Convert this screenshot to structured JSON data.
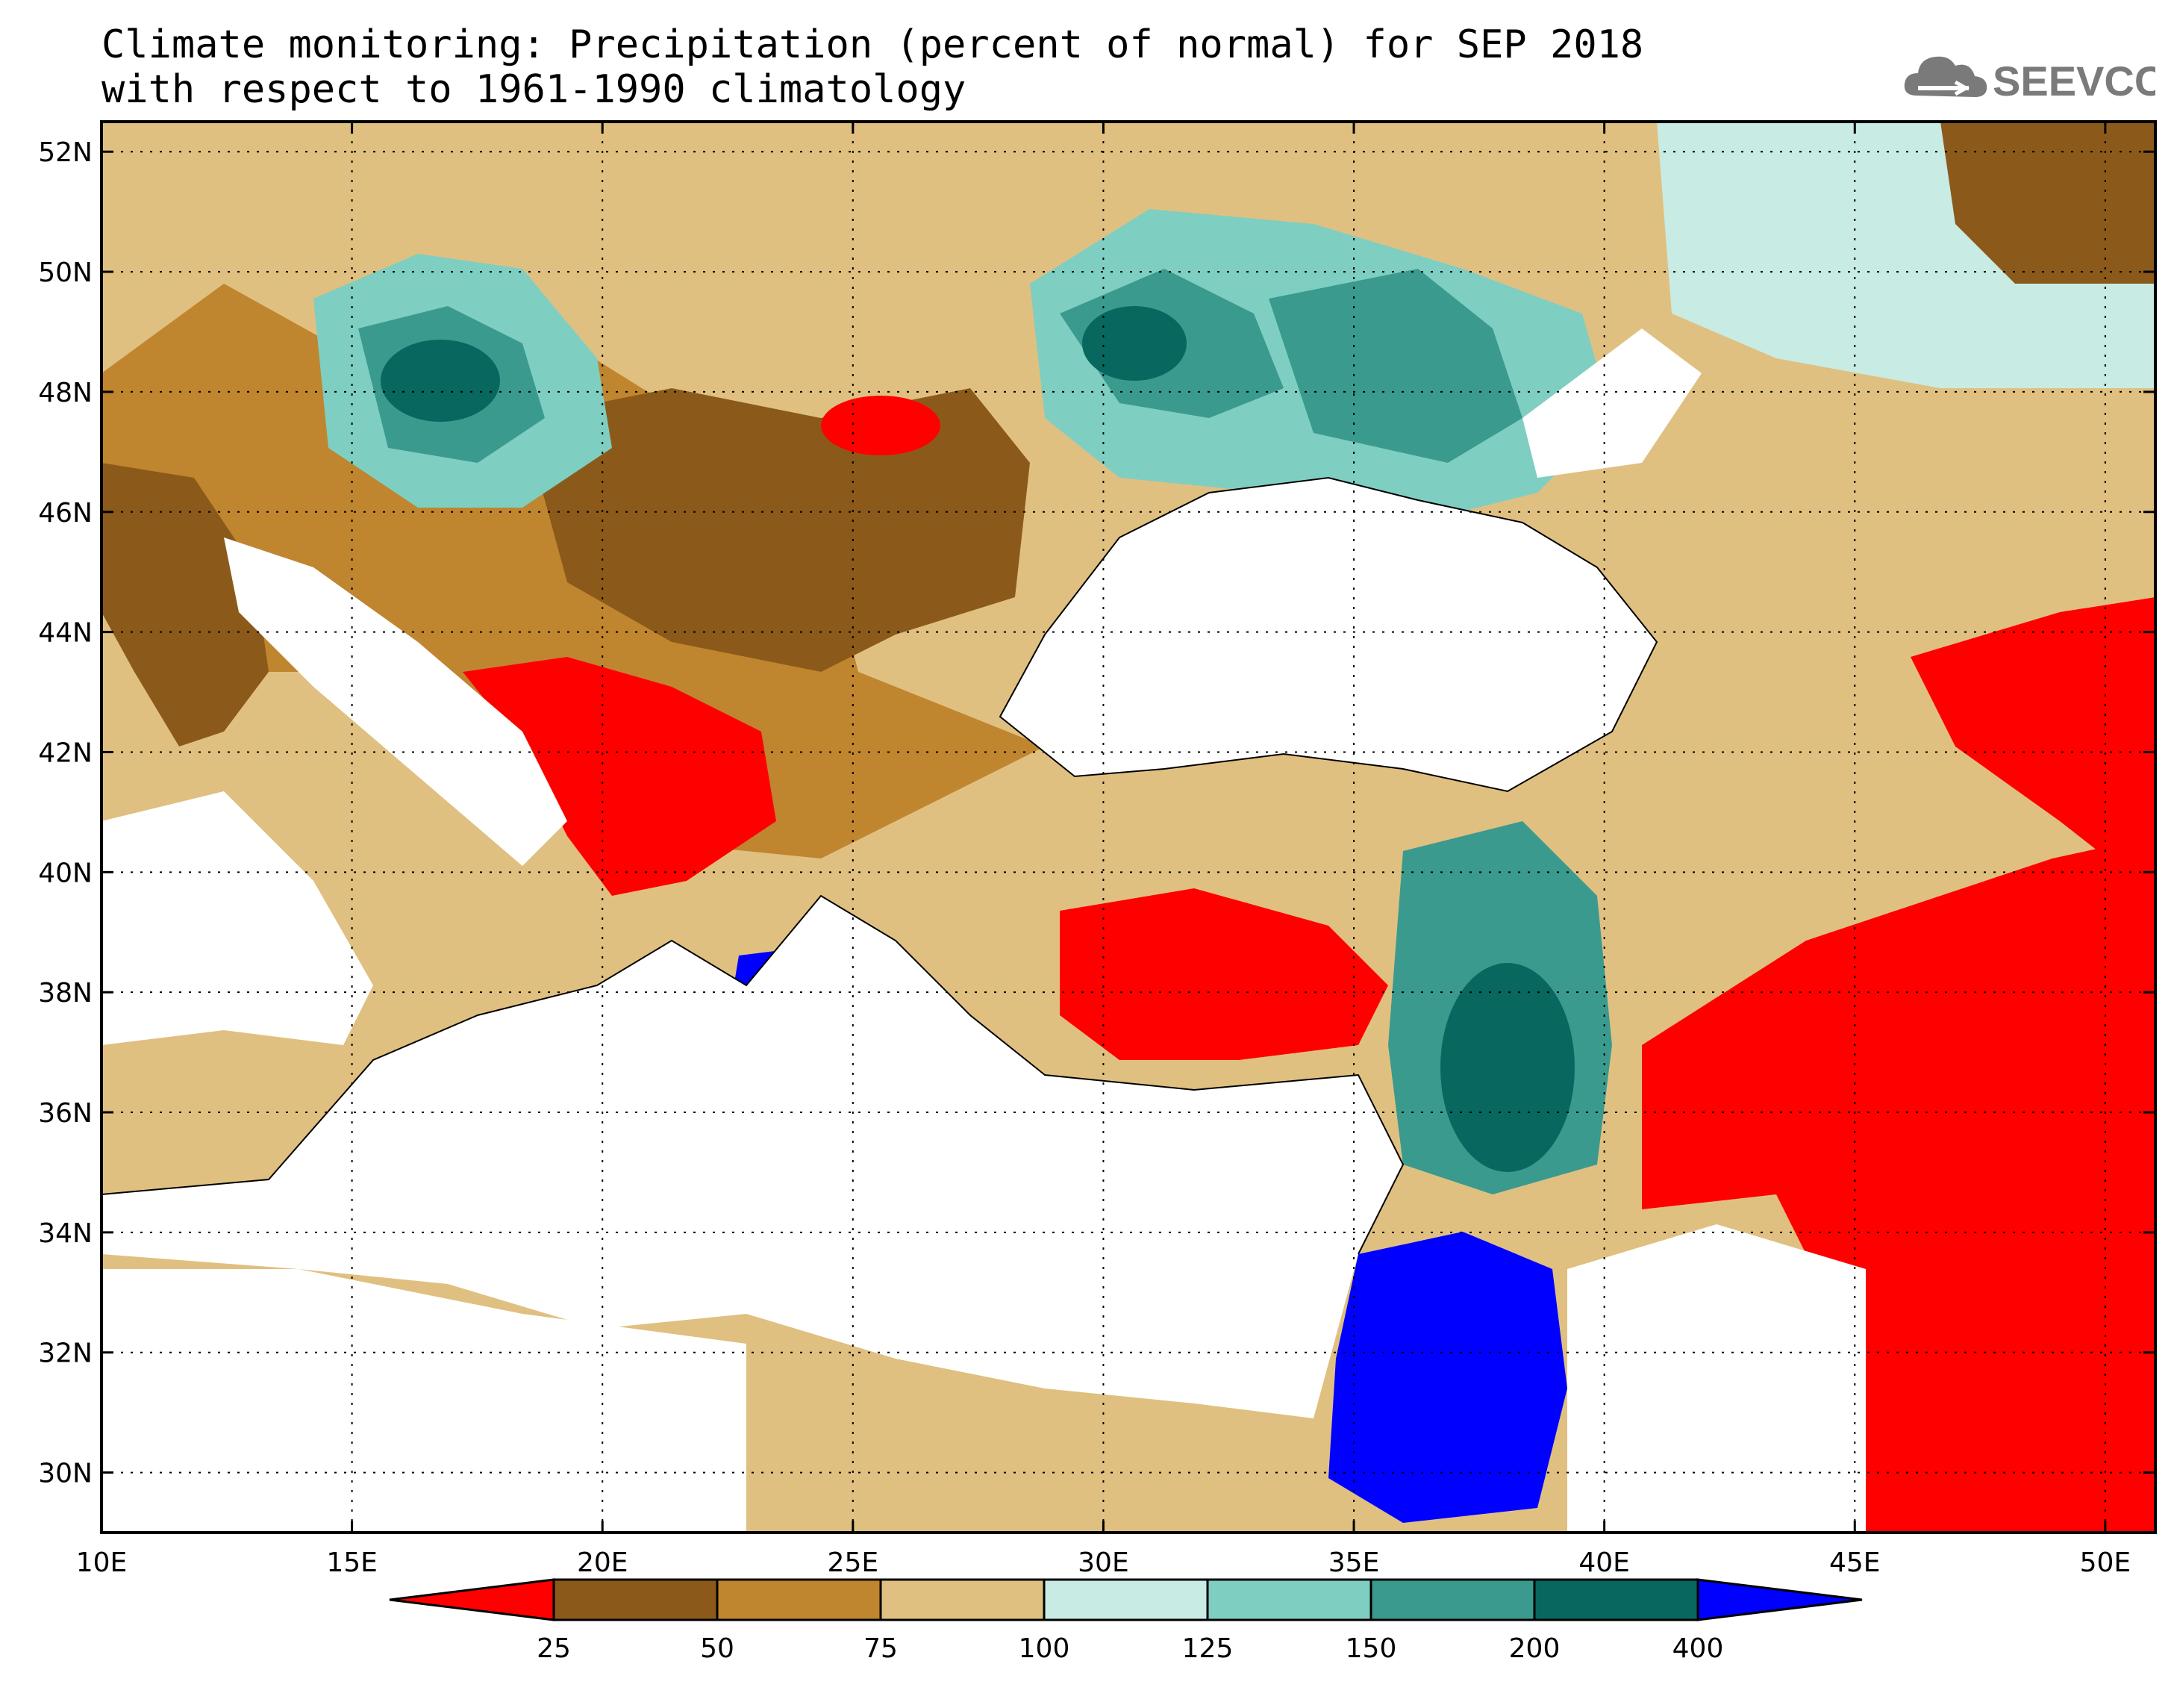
{
  "title": {
    "line1": "Climate monitoring: Precipitation (percent of normal) for SEP 2018",
    "line2": "with respect to 1961-1990 climatology"
  },
  "logo": {
    "text": "SEEVCCC",
    "icon": "cloud-icon"
  },
  "map": {
    "lon_range": [
      10,
      51
    ],
    "lat_range": [
      29,
      52.5
    ],
    "x_ticks": [
      "10E",
      "15E",
      "20E",
      "25E",
      "30E",
      "35E",
      "40E",
      "45E",
      "50E"
    ],
    "y_ticks": [
      "30N",
      "32N",
      "34N",
      "36N",
      "38N",
      "40N",
      "42N",
      "44N",
      "46N",
      "48N",
      "50N",
      "52N"
    ]
  },
  "colorbar": {
    "labels": [
      "25",
      "50",
      "75",
      "100",
      "125",
      "150",
      "200",
      "400"
    ],
    "colors": [
      "#ff0000",
      "#8b5a1a",
      "#c0852f",
      "#e0c080",
      "#c8ebe4",
      "#7fcec2",
      "#3a9a8e",
      "#08675f",
      "#0000ff"
    ]
  }
}
